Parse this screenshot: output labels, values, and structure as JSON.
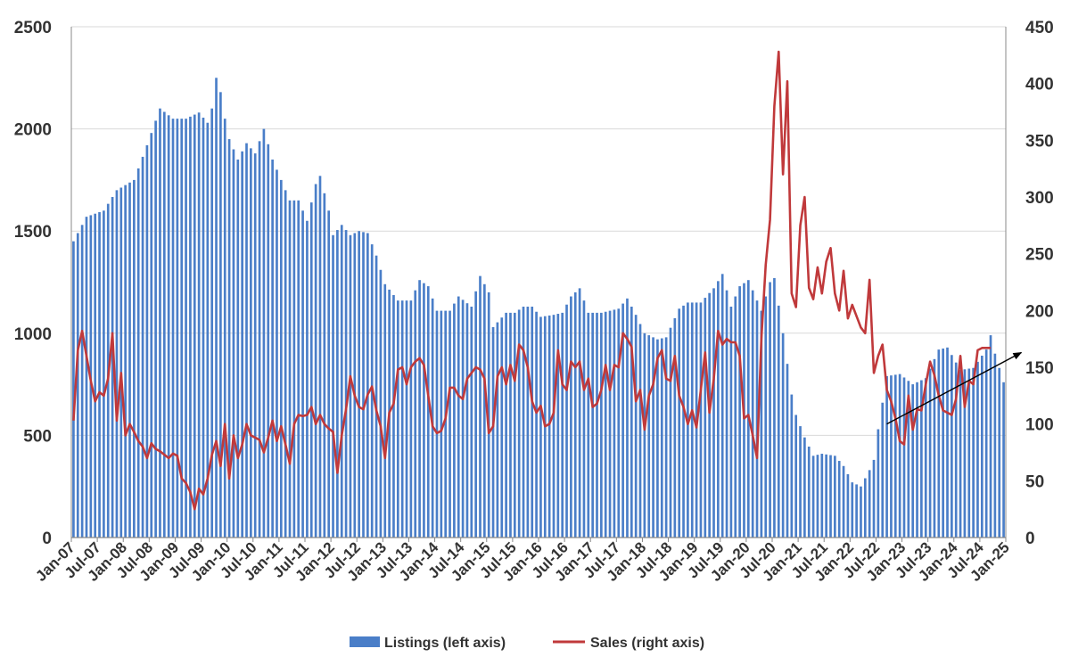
{
  "chart_data": {
    "type": "bar+line",
    "colors": {
      "listings": "#4a7ec8",
      "sales": "#c0393b",
      "trend_arrow": "#000000",
      "grid": "#d9d9d9",
      "axis": "#888888"
    },
    "x_axis": {
      "start": "Jan-07",
      "end": "Jan-25",
      "frequency": "monthly"
    },
    "x_tick_labels": [
      "Jan-07",
      "Jul-07",
      "Jan-08",
      "Jul-08",
      "Jan-09",
      "Jul-09",
      "Jan-10",
      "Jul-10",
      "Jan-11",
      "Jul-11",
      "Jan-12",
      "Jul-12",
      "Jan-13",
      "Jul-13",
      "Jan-14",
      "Jul-14",
      "Jan-15",
      "Jul-15",
      "Jan-16",
      "Jul-16",
      "Jan-17",
      "Jul-17",
      "Jan-18",
      "Jul-18",
      "Jan-19",
      "Jul-19",
      "Jan-20",
      "Jul-20",
      "Jan-21",
      "Jul-21",
      "Jan-22",
      "Jul-22",
      "Jan-23",
      "Jul-23",
      "Jan-24",
      "Jul-24",
      "Jan-25"
    ],
    "y_left": {
      "min": 0,
      "max": 2500,
      "ticks": [
        "0",
        "500",
        "1000",
        "1500",
        "2000",
        "2500"
      ]
    },
    "y_right": {
      "min": 0,
      "max": 450,
      "ticks": [
        "0",
        "50",
        "100",
        "150",
        "200",
        "250",
        "300",
        "350",
        "400",
        "450"
      ]
    },
    "legend": {
      "position": "bottom",
      "items": [
        "Listings (left axis)",
        "Sales (right axis)"
      ]
    },
    "grid": true,
    "listings_anchors": [
      [
        "2007-01",
        1450
      ],
      [
        "2007-04",
        1570
      ],
      [
        "2007-08",
        1600
      ],
      [
        "2007-11",
        1700
      ],
      [
        "2008-03",
        1750
      ],
      [
        "2008-06",
        1920
      ],
      [
        "2008-09",
        2100
      ],
      [
        "2008-12",
        2050
      ],
      [
        "2009-03",
        2050
      ],
      [
        "2009-06",
        2080
      ],
      [
        "2009-08",
        2030
      ],
      [
        "2009-09",
        2100
      ],
      [
        "2009-10",
        2250
      ],
      [
        "2009-11",
        2180
      ],
      [
        "2009-12",
        2050
      ],
      [
        "2010-01",
        1950
      ],
      [
        "2010-03",
        1850
      ],
      [
        "2010-05",
        1930
      ],
      [
        "2010-07",
        1880
      ],
      [
        "2010-09",
        2000
      ],
      [
        "2010-11",
        1850
      ],
      [
        "2011-01",
        1750
      ],
      [
        "2011-03",
        1650
      ],
      [
        "2011-05",
        1650
      ],
      [
        "2011-07",
        1550
      ],
      [
        "2011-09",
        1730
      ],
      [
        "2011-10",
        1770
      ],
      [
        "2011-12",
        1600
      ],
      [
        "2012-01",
        1480
      ],
      [
        "2012-03",
        1530
      ],
      [
        "2012-05",
        1480
      ],
      [
        "2012-07",
        1500
      ],
      [
        "2012-09",
        1490
      ],
      [
        "2012-11",
        1380
      ],
      [
        "2013-01",
        1240
      ],
      [
        "2013-04",
        1160
      ],
      [
        "2013-07",
        1160
      ],
      [
        "2013-09",
        1260
      ],
      [
        "2013-11",
        1230
      ],
      [
        "2014-01",
        1110
      ],
      [
        "2014-04",
        1110
      ],
      [
        "2014-06",
        1180
      ],
      [
        "2014-09",
        1130
      ],
      [
        "2014-11",
        1280
      ],
      [
        "2015-01",
        1200
      ],
      [
        "2015-02",
        1030
      ],
      [
        "2015-05",
        1100
      ],
      [
        "2015-07",
        1100
      ],
      [
        "2015-09",
        1130
      ],
      [
        "2015-11",
        1130
      ],
      [
        "2016-01",
        1080
      ],
      [
        "2016-04",
        1090
      ],
      [
        "2016-06",
        1100
      ],
      [
        "2016-08",
        1180
      ],
      [
        "2016-10",
        1220
      ],
      [
        "2016-12",
        1100
      ],
      [
        "2017-03",
        1100
      ],
      [
        "2017-05",
        1110
      ],
      [
        "2017-07",
        1120
      ],
      [
        "2017-09",
        1170
      ],
      [
        "2017-11",
        1090
      ],
      [
        "2018-01",
        1000
      ],
      [
        "2018-04",
        970
      ],
      [
        "2018-06",
        980
      ],
      [
        "2018-09",
        1120
      ],
      [
        "2018-11",
        1150
      ],
      [
        "2019-02",
        1150
      ],
      [
        "2019-05",
        1220
      ],
      [
        "2019-07",
        1290
      ],
      [
        "2019-09",
        1130
      ],
      [
        "2019-11",
        1230
      ],
      [
        "2020-01",
        1260
      ],
      [
        "2020-04",
        1110
      ],
      [
        "2020-06",
        1250
      ],
      [
        "2020-07",
        1270
      ],
      [
        "2020-09",
        1000
      ],
      [
        "2020-10",
        850
      ],
      [
        "2020-11",
        700
      ],
      [
        "2020-12",
        600
      ],
      [
        "2021-02",
        490
      ],
      [
        "2021-04",
        400
      ],
      [
        "2021-06",
        410
      ],
      [
        "2021-09",
        400
      ],
      [
        "2021-11",
        350
      ],
      [
        "2022-01",
        270
      ],
      [
        "2022-03",
        250
      ],
      [
        "2022-05",
        330
      ],
      [
        "2022-06",
        380
      ],
      [
        "2022-07",
        530
      ],
      [
        "2022-09",
        790
      ],
      [
        "2022-12",
        800
      ],
      [
        "2023-03",
        750
      ],
      [
        "2023-06",
        780
      ],
      [
        "2023-09",
        920
      ],
      [
        "2023-11",
        930
      ],
      [
        "2024-02",
        820
      ],
      [
        "2024-05",
        830
      ],
      [
        "2024-08",
        920
      ],
      [
        "2024-09",
        990
      ],
      [
        "2024-10",
        900
      ],
      [
        "2024-12",
        760
      ],
      [
        "2025-01",
        740
      ]
    ],
    "sales_points": [
      [
        "2007-01",
        103
      ],
      [
        "2007-02",
        165
      ],
      [
        "2007-03",
        182
      ],
      [
        "2007-04",
        160
      ],
      [
        "2007-05",
        138
      ],
      [
        "2007-06",
        120
      ],
      [
        "2007-07",
        128
      ],
      [
        "2007-08",
        125
      ],
      [
        "2007-09",
        140
      ],
      [
        "2007-10",
        180
      ],
      [
        "2007-11",
        103
      ],
      [
        "2007-12",
        145
      ],
      [
        "2008-01",
        90
      ],
      [
        "2008-02",
        100
      ],
      [
        "2008-03",
        93
      ],
      [
        "2008-04",
        85
      ],
      [
        "2008-05",
        80
      ],
      [
        "2008-06",
        70
      ],
      [
        "2008-07",
        83
      ],
      [
        "2008-08",
        78
      ],
      [
        "2008-09",
        76
      ],
      [
        "2008-10",
        73
      ],
      [
        "2008-11",
        70
      ],
      [
        "2008-12",
        74
      ],
      [
        "2009-01",
        72
      ],
      [
        "2009-02",
        52
      ],
      [
        "2009-03",
        48
      ],
      [
        "2009-04",
        40
      ],
      [
        "2009-05",
        25
      ],
      [
        "2009-06",
        43
      ],
      [
        "2009-07",
        38
      ],
      [
        "2009-08",
        52
      ],
      [
        "2009-09",
        73
      ],
      [
        "2009-10",
        85
      ],
      [
        "2009-11",
        63
      ],
      [
        "2009-12",
        100
      ],
      [
        "2010-01",
        52
      ],
      [
        "2010-02",
        90
      ],
      [
        "2010-03",
        70
      ],
      [
        "2010-04",
        82
      ],
      [
        "2010-05",
        100
      ],
      [
        "2010-06",
        90
      ],
      [
        "2010-07",
        88
      ],
      [
        "2010-08",
        86
      ],
      [
        "2010-09",
        75
      ],
      [
        "2010-10",
        88
      ],
      [
        "2010-11",
        103
      ],
      [
        "2010-12",
        85
      ],
      [
        "2011-01",
        98
      ],
      [
        "2011-02",
        82
      ],
      [
        "2011-03",
        65
      ],
      [
        "2011-04",
        100
      ],
      [
        "2011-05",
        108
      ],
      [
        "2011-06",
        107
      ],
      [
        "2011-07",
        108
      ],
      [
        "2011-08",
        115
      ],
      [
        "2011-09",
        100
      ],
      [
        "2011-10",
        108
      ],
      [
        "2011-11",
        100
      ],
      [
        "2011-12",
        96
      ],
      [
        "2012-01",
        93
      ],
      [
        "2012-02",
        57
      ],
      [
        "2012-03",
        90
      ],
      [
        "2012-04",
        113
      ],
      [
        "2012-05",
        142
      ],
      [
        "2012-06",
        125
      ],
      [
        "2012-07",
        115
      ],
      [
        "2012-08",
        113
      ],
      [
        "2012-09",
        126
      ],
      [
        "2012-10",
        133
      ],
      [
        "2012-11",
        112
      ],
      [
        "2012-12",
        98
      ],
      [
        "2013-01",
        70
      ],
      [
        "2013-02",
        110
      ],
      [
        "2013-03",
        118
      ],
      [
        "2013-04",
        148
      ],
      [
        "2013-05",
        150
      ],
      [
        "2013-06",
        135
      ],
      [
        "2013-07",
        150
      ],
      [
        "2013-08",
        155
      ],
      [
        "2013-09",
        158
      ],
      [
        "2013-10",
        152
      ],
      [
        "2013-11",
        125
      ],
      [
        "2013-12",
        98
      ],
      [
        "2014-01",
        92
      ],
      [
        "2014-02",
        94
      ],
      [
        "2014-03",
        105
      ],
      [
        "2014-04",
        132
      ],
      [
        "2014-05",
        132
      ],
      [
        "2014-06",
        125
      ],
      [
        "2014-07",
        122
      ],
      [
        "2014-08",
        140
      ],
      [
        "2014-09",
        145
      ],
      [
        "2014-10",
        150
      ],
      [
        "2014-11",
        148
      ],
      [
        "2014-12",
        140
      ],
      [
        "2015-01",
        92
      ],
      [
        "2015-02",
        98
      ],
      [
        "2015-03",
        142
      ],
      [
        "2015-04",
        150
      ],
      [
        "2015-05",
        135
      ],
      [
        "2015-06",
        152
      ],
      [
        "2015-07",
        138
      ],
      [
        "2015-08",
        170
      ],
      [
        "2015-09",
        165
      ],
      [
        "2015-10",
        150
      ],
      [
        "2015-11",
        120
      ],
      [
        "2015-12",
        110
      ],
      [
        "2016-01",
        116
      ],
      [
        "2016-02",
        98
      ],
      [
        "2016-03",
        100
      ],
      [
        "2016-04",
        110
      ],
      [
        "2016-05",
        165
      ],
      [
        "2016-06",
        135
      ],
      [
        "2016-07",
        130
      ],
      [
        "2016-08",
        155
      ],
      [
        "2016-09",
        150
      ],
      [
        "2016-10",
        155
      ],
      [
        "2016-11",
        130
      ],
      [
        "2016-12",
        140
      ],
      [
        "2017-01",
        115
      ],
      [
        "2017-02",
        118
      ],
      [
        "2017-03",
        130
      ],
      [
        "2017-04",
        152
      ],
      [
        "2017-05",
        130
      ],
      [
        "2017-06",
        152
      ],
      [
        "2017-07",
        150
      ],
      [
        "2017-08",
        180
      ],
      [
        "2017-09",
        175
      ],
      [
        "2017-10",
        168
      ],
      [
        "2017-11",
        120
      ],
      [
        "2017-12",
        130
      ],
      [
        "2018-01",
        95
      ],
      [
        "2018-02",
        125
      ],
      [
        "2018-03",
        135
      ],
      [
        "2018-04",
        158
      ],
      [
        "2018-05",
        165
      ],
      [
        "2018-06",
        140
      ],
      [
        "2018-07",
        138
      ],
      [
        "2018-08",
        160
      ],
      [
        "2018-09",
        125
      ],
      [
        "2018-10",
        115
      ],
      [
        "2018-11",
        100
      ],
      [
        "2018-12",
        112
      ],
      [
        "2019-01",
        97
      ],
      [
        "2019-02",
        130
      ],
      [
        "2019-03",
        163
      ],
      [
        "2019-04",
        110
      ],
      [
        "2019-05",
        140
      ],
      [
        "2019-06",
        182
      ],
      [
        "2019-07",
        170
      ],
      [
        "2019-08",
        175
      ],
      [
        "2019-09",
        172
      ],
      [
        "2019-10",
        172
      ],
      [
        "2019-11",
        160
      ],
      [
        "2019-12",
        105
      ],
      [
        "2020-01",
        108
      ],
      [
        "2020-02",
        90
      ],
      [
        "2020-03",
        70
      ],
      [
        "2020-04",
        175
      ],
      [
        "2020-05",
        240
      ],
      [
        "2020-06",
        280
      ],
      [
        "2020-07",
        380
      ],
      [
        "2020-08",
        428
      ],
      [
        "2020-09",
        320
      ],
      [
        "2020-10",
        402
      ],
      [
        "2020-11",
        215
      ],
      [
        "2020-12",
        203
      ],
      [
        "2021-01",
        275
      ],
      [
        "2021-02",
        300
      ],
      [
        "2021-03",
        220
      ],
      [
        "2021-04",
        210
      ],
      [
        "2021-05",
        238
      ],
      [
        "2021-06",
        215
      ],
      [
        "2021-07",
        243
      ],
      [
        "2021-08",
        255
      ],
      [
        "2021-09",
        215
      ],
      [
        "2021-10",
        200
      ],
      [
        "2021-11",
        235
      ],
      [
        "2021-12",
        193
      ],
      [
        "2022-01",
        205
      ],
      [
        "2022-02",
        195
      ],
      [
        "2022-03",
        185
      ],
      [
        "2022-04",
        180
      ],
      [
        "2022-05",
        227
      ],
      [
        "2022-06",
        145
      ],
      [
        "2022-07",
        160
      ],
      [
        "2022-08",
        170
      ],
      [
        "2022-09",
        130
      ],
      [
        "2022-10",
        120
      ],
      [
        "2022-11",
        105
      ],
      [
        "2022-12",
        85
      ],
      [
        "2023-01",
        82
      ],
      [
        "2023-02",
        125
      ],
      [
        "2023-03",
        95
      ],
      [
        "2023-04",
        113
      ],
      [
        "2023-05",
        112
      ],
      [
        "2023-06",
        135
      ],
      [
        "2023-07",
        155
      ],
      [
        "2023-08",
        143
      ],
      [
        "2023-09",
        125
      ],
      [
        "2023-10",
        112
      ],
      [
        "2023-11",
        110
      ],
      [
        "2023-12",
        108
      ],
      [
        "2024-01",
        122
      ],
      [
        "2024-02",
        160
      ],
      [
        "2024-03",
        115
      ],
      [
        "2024-04",
        138
      ],
      [
        "2024-05",
        135
      ],
      [
        "2024-06",
        165
      ],
      [
        "2024-07",
        167
      ],
      [
        "2024-08",
        167
      ],
      [
        "2024-09",
        167
      ]
    ],
    "trend_arrow": {
      "from": [
        "2022-09",
        100
      ],
      "to": [
        "2025-01",
        163
      ],
      "axis": "right"
    }
  }
}
